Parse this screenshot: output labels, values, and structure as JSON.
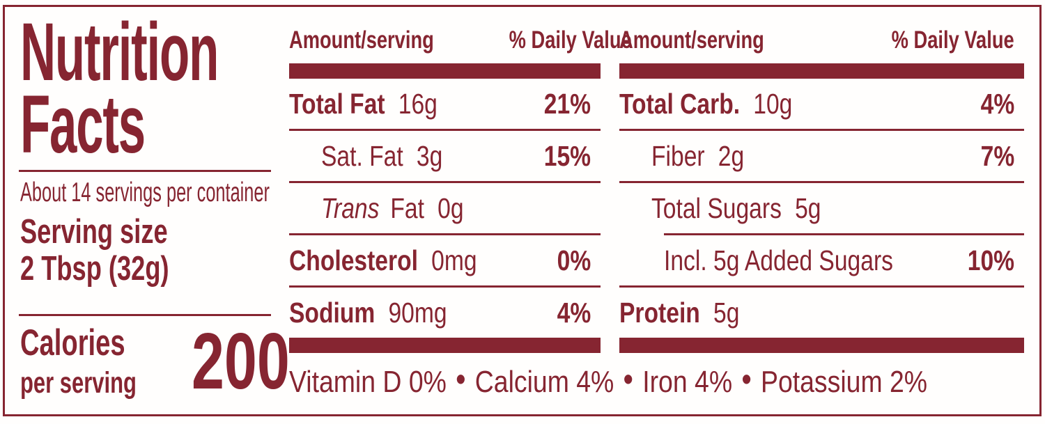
{
  "label": {
    "title_line1": "Nutrition",
    "title_line2": "Facts",
    "servings_per_container": "About 14 servings per container",
    "serving_size_label": "Serving size",
    "serving_size_value": "2 Tbsp (32g)",
    "calories_label": "Calories",
    "calories_sublabel": "per serving",
    "calories_value": "200"
  },
  "columns": [
    {
      "header": {
        "amount": "Amount/serving",
        "daily_value": "% Daily Value"
      },
      "rows": [
        {
          "name": "Total Fat",
          "amount": "16g",
          "dv": "21%"
        },
        {
          "name": "Sat. Fat",
          "amount": "3g",
          "dv": "15%"
        },
        {
          "name_italic": "Trans",
          "name": "Fat",
          "amount": "0g",
          "dv": ""
        },
        {
          "name": "Cholesterol",
          "amount": "0mg",
          "dv": "0%"
        },
        {
          "name": "Sodium",
          "amount": "90mg",
          "dv": "4%"
        }
      ]
    },
    {
      "header": {
        "amount": "Amount/serving",
        "daily_value": "% Daily Value"
      },
      "rows": [
        {
          "name": "Total Carb.",
          "amount": "10g",
          "dv": "4%"
        },
        {
          "name": "Fiber",
          "amount": "2g",
          "dv": "7%"
        },
        {
          "name": "Total Sugars",
          "amount": "5g",
          "dv": ""
        },
        {
          "name": "Incl. 5g Added Sugars",
          "amount": "",
          "dv": "10%"
        },
        {
          "name": "Protein",
          "amount": "5g",
          "dv": ""
        }
      ]
    }
  ],
  "micronutrients": {
    "items": [
      "Vitamin D 0%",
      "Calcium 4%",
      "Iron 4%",
      "Potassium 2%"
    ],
    "separator": "•"
  },
  "colors": {
    "accent_maroon": "#862531",
    "background": "#FFFEFD"
  }
}
